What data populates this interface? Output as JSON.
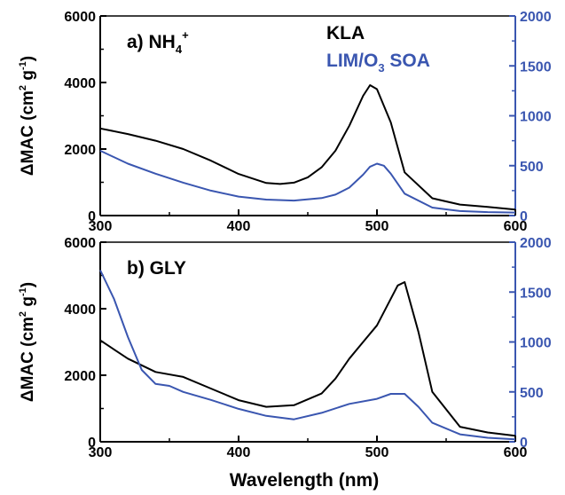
{
  "chart_data": [
    {
      "type": "line",
      "panel_label": "a) NH",
      "panel_label_sub": "4",
      "panel_label_sup": "+",
      "xlim": [
        300,
        600
      ],
      "x_ticks": [
        "300",
        "400",
        "500",
        "600"
      ],
      "ylabel": "ΔMAC (cm",
      "ylabel_sup1": "2",
      "ylabel_mid": " g",
      "ylabel_sup2": "-1",
      "ylabel_end": ")",
      "ylim_left": [
        0,
        6000
      ],
      "y_ticks_left": [
        "0",
        "2000",
        "4000",
        "6000"
      ],
      "ylim_right": [
        0,
        2000
      ],
      "y_ticks_right": [
        "0",
        "500",
        "1000",
        "1500",
        "2000"
      ],
      "grid": false,
      "legend": [
        {
          "name": "KLA",
          "color": "#000000"
        },
        {
          "name": "LIM/O",
          "sub": "3",
          "tail": " SOA",
          "color": "#3a56b0"
        }
      ],
      "series": [
        {
          "name": "KLA",
          "axis": "left",
          "color": "#000000",
          "x": [
            300,
            320,
            340,
            360,
            380,
            400,
            420,
            430,
            440,
            450,
            460,
            470,
            480,
            490,
            495,
            500,
            510,
            520,
            540,
            560,
            580,
            600
          ],
          "y": [
            2620,
            2450,
            2250,
            2000,
            1650,
            1250,
            980,
            950,
            990,
            1150,
            1450,
            1950,
            2700,
            3600,
            3920,
            3800,
            2800,
            1300,
            520,
            330,
            260,
            180
          ]
        },
        {
          "name": "LIM/O3 SOA",
          "axis": "right",
          "color": "#3a56b0",
          "x": [
            300,
            320,
            340,
            360,
            380,
            400,
            420,
            440,
            460,
            470,
            480,
            490,
            495,
            500,
            505,
            510,
            520,
            540,
            560,
            580,
            600
          ],
          "y": [
            650,
            520,
            420,
            330,
            250,
            190,
            160,
            150,
            175,
            210,
            280,
            410,
            490,
            520,
            500,
            420,
            220,
            80,
            45,
            35,
            30
          ]
        }
      ]
    },
    {
      "type": "line",
      "panel_label": "b) GLY",
      "xlim": [
        300,
        600
      ],
      "x_ticks": [
        "300",
        "400",
        "500",
        "600"
      ],
      "xlabel": "Wavelength (nm)",
      "ylabel": "ΔMAC (cm",
      "ylabel_sup1": "2",
      "ylabel_mid": " g",
      "ylabel_sup2": "-1",
      "ylabel_end": ")",
      "ylim_left": [
        0,
        6000
      ],
      "y_ticks_left": [
        "0",
        "2000",
        "4000",
        "6000"
      ],
      "ylim_right": [
        0,
        2000
      ],
      "y_ticks_right": [
        "0",
        "500",
        "1000",
        "1500",
        "2000"
      ],
      "grid": false,
      "series": [
        {
          "name": "KLA",
          "axis": "left",
          "color": "#000000",
          "x": [
            300,
            320,
            340,
            360,
            380,
            400,
            420,
            440,
            460,
            470,
            480,
            490,
            500,
            510,
            515,
            520,
            530,
            540,
            560,
            580,
            600
          ],
          "y": [
            3050,
            2500,
            2100,
            1950,
            1600,
            1250,
            1050,
            1100,
            1450,
            1900,
            2500,
            3000,
            3500,
            4300,
            4700,
            4800,
            3300,
            1500,
            450,
            280,
            180
          ]
        },
        {
          "name": "LIM/O3 SOA",
          "axis": "right",
          "color": "#3a56b0",
          "x": [
            300,
            310,
            320,
            330,
            340,
            350,
            360,
            380,
            400,
            420,
            440,
            460,
            480,
            500,
            510,
            520,
            530,
            540,
            560,
            580,
            600
          ],
          "y": [
            1720,
            1430,
            1050,
            720,
            580,
            560,
            500,
            420,
            330,
            260,
            225,
            290,
            380,
            430,
            480,
            480,
            350,
            190,
            75,
            40,
            25
          ]
        }
      ]
    }
  ]
}
